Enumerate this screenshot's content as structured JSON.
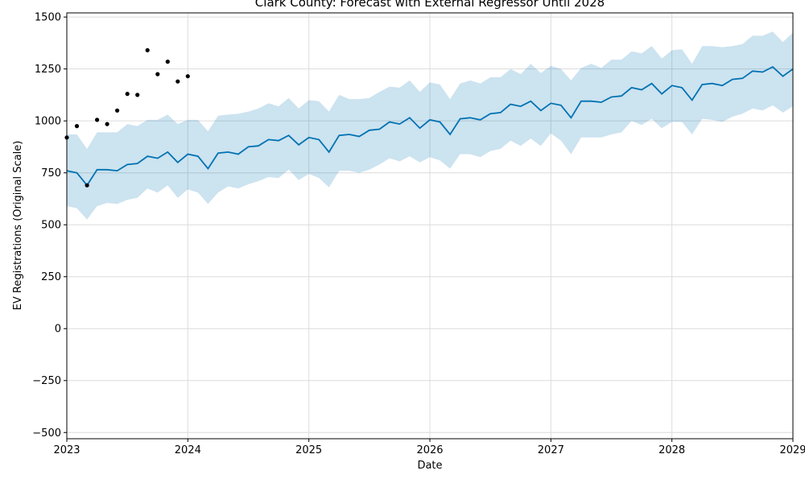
{
  "chart_data": {
    "type": "line",
    "title": "Clark County: Forecast with External Regressor Until 2028",
    "xlabel": "Date",
    "ylabel": "EV Registrations (Original Scale)",
    "xlim": [
      "2023-01",
      "2029-01"
    ],
    "ylim": [
      -530,
      1520
    ],
    "x_ticks": [
      "2023",
      "2024",
      "2025",
      "2026",
      "2027",
      "2028",
      "2029"
    ],
    "y_ticks": [
      -500,
      -250,
      0,
      250,
      500,
      750,
      1000,
      1250,
      1500
    ],
    "grid": true,
    "colors": {
      "forecast": "#0072B2",
      "band": "#0072B2",
      "actual": "#000000"
    },
    "series": [
      {
        "role": "actual",
        "x": [
          "2023-01",
          "2023-02",
          "2023-03",
          "2023-04",
          "2023-05",
          "2023-06",
          "2023-07",
          "2023-08",
          "2023-09",
          "2023-10",
          "2023-11",
          "2023-12",
          "2024-01"
        ],
        "values": [
          920,
          975,
          690,
          1005,
          985,
          1050,
          1130,
          1125,
          1340,
          1225,
          1285,
          1190,
          1215
        ]
      },
      {
        "role": "forecast",
        "x": [
          "2023-01",
          "2023-02",
          "2023-03",
          "2023-04",
          "2023-05",
          "2023-06",
          "2023-07",
          "2023-08",
          "2023-09",
          "2023-10",
          "2023-11",
          "2023-12",
          "2024-01",
          "2024-02",
          "2024-03",
          "2024-04",
          "2024-05",
          "2024-06",
          "2024-07",
          "2024-08",
          "2024-09",
          "2024-10",
          "2024-11",
          "2024-12",
          "2025-01",
          "2025-02",
          "2025-03",
          "2025-04",
          "2025-05",
          "2025-06",
          "2025-07",
          "2025-08",
          "2025-09",
          "2025-10",
          "2025-11",
          "2025-12",
          "2026-01",
          "2026-02",
          "2026-03",
          "2026-04",
          "2026-05",
          "2026-06",
          "2026-07",
          "2026-08",
          "2026-09",
          "2026-10",
          "2026-11",
          "2026-12",
          "2027-01",
          "2027-02",
          "2027-03",
          "2027-04",
          "2027-05",
          "2027-06",
          "2027-07",
          "2027-08",
          "2027-09",
          "2027-10",
          "2027-11",
          "2027-12",
          "2028-01",
          "2028-02",
          "2028-03",
          "2028-04",
          "2028-05",
          "2028-06",
          "2028-07",
          "2028-08",
          "2028-09",
          "2028-10",
          "2028-11",
          "2028-12",
          "2029-01"
        ],
        "values": [
          760,
          750,
          690,
          765,
          765,
          760,
          790,
          795,
          830,
          820,
          850,
          800,
          840,
          830,
          770,
          845,
          850,
          840,
          875,
          880,
          910,
          905,
          930,
          885,
          920,
          910,
          850,
          930,
          935,
          925,
          955,
          960,
          995,
          985,
          1015,
          965,
          1005,
          995,
          935,
          1010,
          1015,
          1005,
          1035,
          1040,
          1080,
          1070,
          1095,
          1050,
          1085,
          1075,
          1015,
          1095,
          1095,
          1090,
          1115,
          1120,
          1160,
          1150,
          1180,
          1130,
          1170,
          1160,
          1100,
          1175,
          1180,
          1170,
          1200,
          1205,
          1240,
          1235,
          1260,
          1215,
          1250
        ],
        "lower": [
          590,
          580,
          525,
          590,
          605,
          600,
          620,
          630,
          675,
          655,
          690,
          630,
          670,
          655,
          600,
          655,
          685,
          675,
          695,
          710,
          730,
          725,
          765,
          715,
          745,
          725,
          680,
          760,
          760,
          750,
          765,
          790,
          820,
          805,
          830,
          800,
          825,
          810,
          770,
          840,
          840,
          825,
          855,
          865,
          905,
          880,
          915,
          880,
          940,
          905,
          840,
          920,
          920,
          920,
          935,
          945,
          1000,
          980,
          1010,
          965,
          995,
          995,
          935,
          1010,
          1005,
          995,
          1020,
          1035,
          1060,
          1050,
          1075,
          1040,
          1070
        ],
        "upper": [
          935,
          935,
          865,
          945,
          945,
          945,
          985,
          975,
          1005,
          1005,
          1030,
          985,
          1005,
          1005,
          950,
          1025,
          1030,
          1035,
          1045,
          1060,
          1085,
          1070,
          1110,
          1060,
          1100,
          1095,
          1045,
          1125,
          1105,
          1105,
          1110,
          1140,
          1165,
          1160,
          1195,
          1140,
          1185,
          1175,
          1105,
          1180,
          1195,
          1180,
          1210,
          1210,
          1250,
          1225,
          1275,
          1230,
          1265,
          1250,
          1195,
          1255,
          1275,
          1255,
          1295,
          1295,
          1335,
          1325,
          1360,
          1300,
          1340,
          1345,
          1275,
          1360,
          1360,
          1355,
          1360,
          1370,
          1410,
          1410,
          1430,
          1380,
          1425
        ]
      }
    ]
  }
}
